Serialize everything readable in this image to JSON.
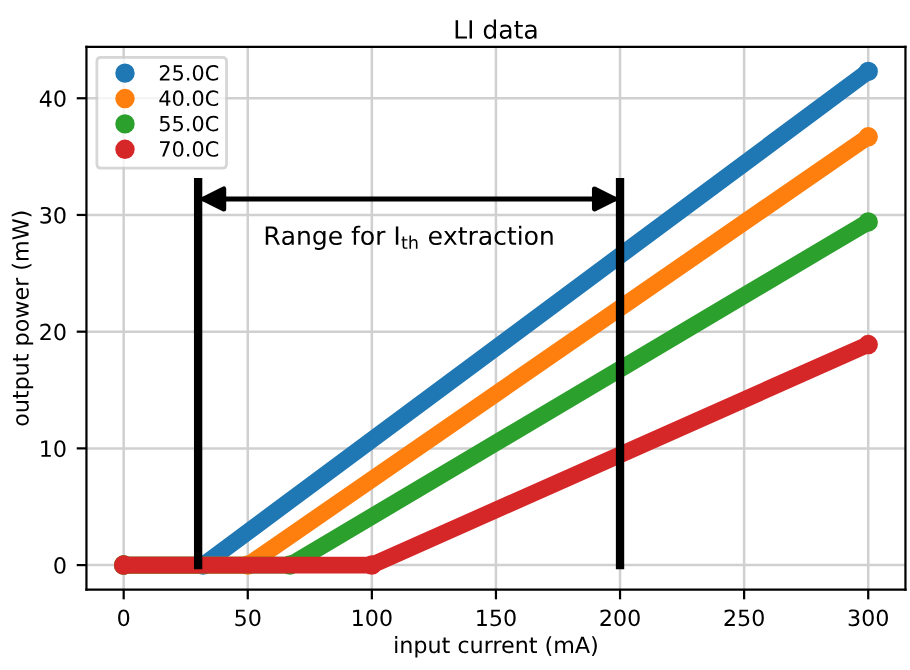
{
  "chart_data": {
    "type": "line",
    "title": "LI data",
    "xlabel": "input current (mA)",
    "ylabel": "output power (mW)",
    "series": [
      {
        "name": "25.0C",
        "color": "#1f77b4",
        "x": [
          0,
          32,
          300
        ],
        "values": [
          0,
          0,
          42.3
        ]
      },
      {
        "name": "40.0C",
        "color": "#ff7f0e",
        "x": [
          0,
          50,
          300
        ],
        "values": [
          0,
          0,
          36.7
        ]
      },
      {
        "name": "55.0C",
        "color": "#2ca02c",
        "x": [
          0,
          67,
          300
        ],
        "values": [
          0,
          0,
          29.4
        ]
      },
      {
        "name": "70.0C",
        "color": "#d62728",
        "x": [
          0,
          100,
          300
        ],
        "values": [
          0,
          0,
          18.9
        ]
      },
      {
        "color": "#000000",
        "x": [
          30,
          30
        ],
        "values": [
          0,
          32.8
        ],
        "marker": "none"
      },
      {
        "color": "#000000",
        "x": [
          200,
          200
        ],
        "values": [
          0,
          32.8
        ],
        "marker": "none"
      }
    ],
    "annotations": [
      "Range for I$_{th}$ extraction"
    ],
    "xlim": [
      -15,
      315
    ],
    "ylim": [
      -2.1,
      44.4
    ],
    "xticks": [
      0,
      50,
      100,
      150,
      200,
      250,
      300
    ],
    "yticks": [
      0,
      10,
      20,
      30,
      40
    ],
    "grid": true,
    "legend": "top left",
    "marker": "circle"
  }
}
